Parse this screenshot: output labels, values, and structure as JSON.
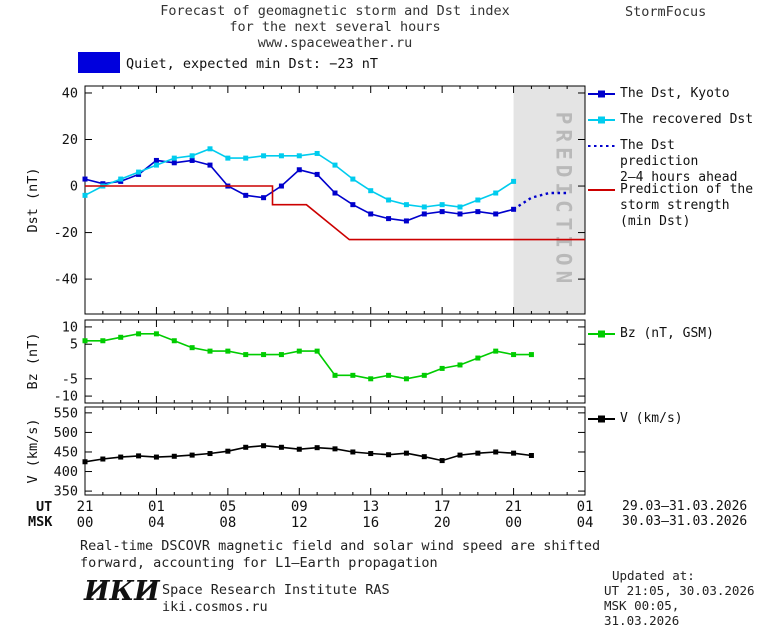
{
  "header": {
    "title_line1": "Forecast of geomagnetic storm and Dst index",
    "title_line2": "for the next several hours",
    "title_line3": "www.spaceweather.ru",
    "brand": "StormFocus"
  },
  "status_banner": {
    "label": "Quiet, expected min Dst: −23 nT",
    "swatch_color": "#0000dd"
  },
  "chart_data": [
    {
      "type": "line",
      "title": "Forecast of geomagnetic storm and Dst index for the next several hours",
      "ylabel": "Dst (nT)",
      "ylim": [
        -55,
        43
      ],
      "yticks": [
        40,
        20,
        0,
        -20,
        -40
      ],
      "xlim_hours": [
        0,
        28
      ],
      "xticks_hours": [
        0,
        4,
        8,
        12,
        16,
        20,
        24,
        28
      ],
      "prediction_band_hours": [
        24,
        28
      ],
      "prediction_label": "PREDICTION",
      "series": [
        {
          "name": "The Dst, Kyoto",
          "color": "#0000cc",
          "style": "solid",
          "marker": "square",
          "start_hour": 0,
          "values": [
            3,
            1,
            2,
            5,
            11,
            10,
            11,
            9,
            0,
            -4,
            -5,
            0,
            7,
            5,
            -3,
            -8,
            -12,
            -14,
            -15,
            -12,
            -11,
            -12,
            -11,
            -12,
            -10
          ]
        },
        {
          "name": "The recovered Dst",
          "color": "#00ccee",
          "style": "solid",
          "marker": "square",
          "start_hour": 0,
          "values": [
            -4,
            0,
            3,
            6,
            9,
            12,
            13,
            16,
            12,
            12,
            13,
            13,
            13,
            14,
            9,
            3,
            -2,
            -6,
            -8,
            -9,
            -8,
            -9,
            -6,
            -3,
            2
          ]
        },
        {
          "name": "The Dst prediction 2–4 hours ahead",
          "color": "#0000cc",
          "style": "dotted",
          "marker": "none",
          "start_hour": 24,
          "values": [
            -10,
            -5,
            -3,
            -3
          ]
        },
        {
          "name": "Prediction of the storm strength (min Dst)",
          "color": "#cc0000",
          "style": "solid",
          "marker": "none",
          "xy": [
            [
              0,
              0
            ],
            [
              10.5,
              0
            ],
            [
              10.5,
              -8
            ],
            [
              12.4,
              -8
            ],
            [
              14.8,
              -23
            ],
            [
              28,
              -23
            ]
          ]
        }
      ]
    },
    {
      "type": "line",
      "ylabel": "Bz (nT)",
      "ylim": [
        -12,
        12
      ],
      "yticks": [
        10,
        5,
        -5,
        -10
      ],
      "xlim_hours": [
        0,
        28
      ],
      "xticks_hours": [
        0,
        4,
        8,
        12,
        16,
        20,
        24,
        28
      ],
      "series": [
        {
          "name": "Bz (nT, GSM)",
          "color": "#00cc00",
          "style": "solid",
          "marker": "square",
          "start_hour": 0,
          "values": [
            6,
            6,
            7,
            8,
            8,
            6,
            4,
            3,
            3,
            2,
            2,
            2,
            3,
            3,
            -4,
            -4,
            -5,
            -4,
            -5,
            -4,
            -2,
            -1,
            1,
            3,
            2,
            2
          ]
        }
      ]
    },
    {
      "type": "line",
      "ylabel": "V (km/s)",
      "ylim": [
        340,
        565
      ],
      "yticks": [
        550,
        500,
        450,
        400,
        350
      ],
      "xlim_hours": [
        0,
        28
      ],
      "xticks_hours": [
        0,
        4,
        8,
        12,
        16,
        20,
        24,
        28
      ],
      "series": [
        {
          "name": "V (km/s)",
          "color": "#000000",
          "style": "solid",
          "marker": "square",
          "start_hour": 0,
          "values": [
            425,
            432,
            437,
            440,
            437,
            439,
            442,
            446,
            452,
            462,
            466,
            462,
            457,
            461,
            458,
            450,
            446,
            443,
            447,
            438,
            428,
            442,
            447,
            450,
            447,
            441
          ]
        }
      ]
    }
  ],
  "legend": [
    {
      "key": "dst-kyoto",
      "marker": "square-line",
      "color": "#0000cc",
      "lines": [
        "The Dst, Kyoto"
      ]
    },
    {
      "key": "recovered-dst",
      "marker": "square-line",
      "color": "#00ccee",
      "lines": [
        "The recovered Dst"
      ]
    },
    {
      "key": "dst-prediction",
      "marker": "dotted-line",
      "color": "#0000cc",
      "lines": [
        "The Dst prediction",
        "2–4 hours ahead"
      ]
    },
    {
      "key": "storm-strength",
      "marker": "line",
      "color": "#cc0000",
      "lines": [
        "Prediction of the",
        "storm strength",
        "(min Dst)"
      ]
    },
    {
      "key": "bz",
      "marker": "square-line",
      "color": "#00cc00",
      "lines": [
        "Bz (nT, GSM)"
      ]
    },
    {
      "key": "v",
      "marker": "square-line",
      "color": "#000000",
      "lines": [
        "V (km/s)"
      ]
    }
  ],
  "xaxis": {
    "ut_label": "UT",
    "msk_label": "MSK",
    "ut_ticks": [
      "21",
      "01",
      "05",
      "09",
      "13",
      "17",
      "21",
      "01"
    ],
    "msk_ticks": [
      "00",
      "04",
      "08",
      "12",
      "16",
      "20",
      "00",
      "04"
    ],
    "ut_dates": "29.03–31.03.2026",
    "msk_dates": "30.03–31.03.2026"
  },
  "footnote": {
    "line1": "Real-time DSCOVR magnetic field and solar wind speed are shifted",
    "line2": "forward, accounting for L1–Earth propagation"
  },
  "footer": {
    "logo": "ИКИ",
    "institute": "Space Research Institute RAS",
    "site": "iki.cosmos.ru",
    "updated_label": "Updated at:",
    "updated_ut": "UT  21:05, 30.03.2026",
    "updated_msk": "MSK 00:05, 31.03.2026"
  }
}
